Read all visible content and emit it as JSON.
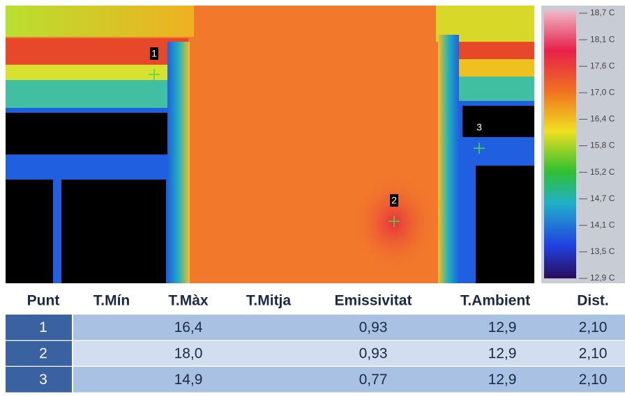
{
  "thermal_image": {
    "points": [
      {
        "label": "1"
      },
      {
        "label": "2"
      },
      {
        "label": "3"
      }
    ]
  },
  "scale": {
    "labels": [
      "18,7 C",
      "18,1 C",
      "17,6 C",
      "17,0 C",
      "16,4 C",
      "15,8 C",
      "15,2 C",
      "14,7 C",
      "14,1 C",
      "13,5 C",
      "12,9 C"
    ]
  },
  "table": {
    "headers": [
      "Punt",
      "T.Mín",
      "T.Màx",
      "T.Mitja",
      "Emissivitat",
      "T.Ambient",
      "Dist."
    ],
    "rows": [
      {
        "punt": "1",
        "t_max": "16,4",
        "emissivitat": "0,93",
        "t_ambient": "12,9",
        "dist": "2,10"
      },
      {
        "punt": "2",
        "t_max": "18,0",
        "emissivitat": "0,93",
        "t_ambient": "12,9",
        "dist": "2,10"
      },
      {
        "punt": "3",
        "t_max": "14,9",
        "emissivitat": "0,77",
        "t_ambient": "12,9",
        "dist": "2,10"
      }
    ]
  }
}
